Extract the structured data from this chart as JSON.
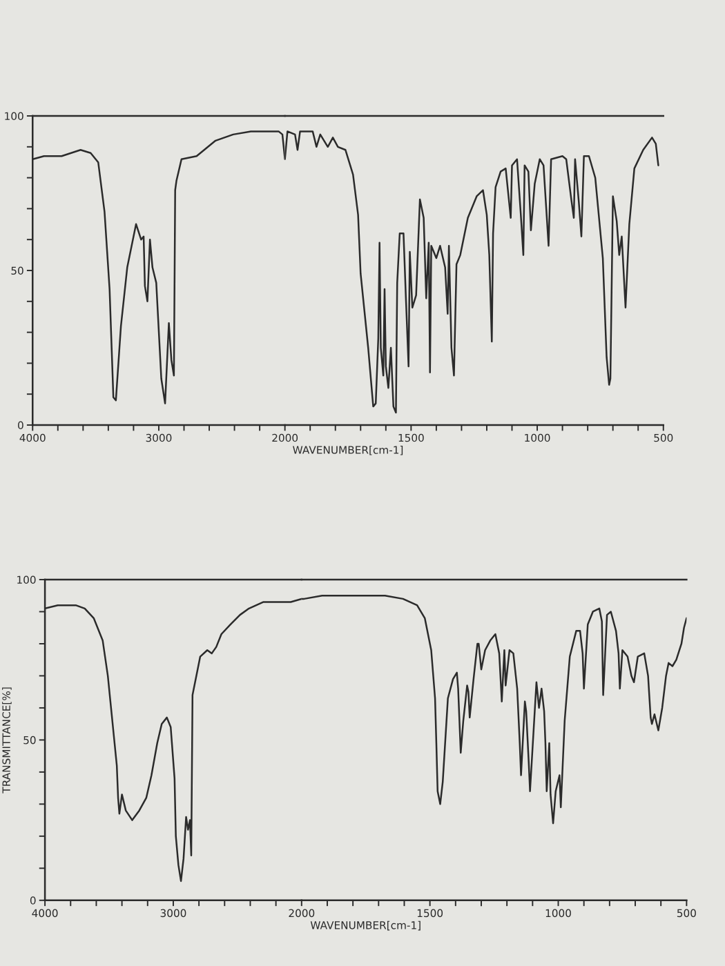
{
  "chart_data": [
    {
      "type": "line",
      "x": [
        4000,
        3910,
        3770,
        3620,
        3540,
        3480,
        3430,
        3390,
        3360,
        3340,
        3300,
        3250,
        3180,
        3140,
        3120,
        3110,
        3090,
        3070,
        3050,
        3020,
        2980,
        2950,
        2920,
        2900,
        2880,
        2870,
        2860,
        2820,
        2700,
        2550,
        2410,
        2270,
        2160,
        2050,
        2020,
        2000
      ],
      "series": [
        {
          "color": "#2b2b2b",
          "values": [
            86,
            87,
            87,
            89,
            88,
            85,
            69,
            44,
            9,
            8,
            32,
            51,
            65,
            60,
            61,
            45,
            40,
            60,
            51,
            46,
            15,
            7,
            33,
            21,
            16,
            76,
            79,
            86,
            87,
            92,
            94,
            95,
            95,
            95,
            94,
            86
          ]
        }
      ],
      "xlim": [
        4000,
        2000
      ],
      "ylim": [
        0,
        100
      ],
      "xticks": [
        4000,
        {
          "value": 3800,
          "label": null
        },
        {
          "value": 3600,
          "label": null
        },
        {
          "value": 3400,
          "label": null
        },
        {
          "value": 3200,
          "label": null
        },
        3000,
        {
          "value": 2800,
          "label": null
        },
        {
          "value": 2600,
          "label": null
        },
        {
          "value": 2400,
          "label": null
        },
        {
          "value": 2200,
          "label": null
        },
        2000
      ],
      "yticks": [
        0,
        {
          "value": 10,
          "label": null
        },
        {
          "value": 20,
          "label": null
        },
        {
          "value": 30,
          "label": null
        },
        {
          "value": 40,
          "label": null
        },
        50,
        {
          "value": 60,
          "label": null
        },
        {
          "value": 70,
          "label": null
        },
        {
          "value": 80,
          "label": null
        },
        {
          "value": 90,
          "label": null
        },
        100
      ]
    },
    {
      "type": "line",
      "xlabel": "WAVENUMBER[cm-1]",
      "tick_labels": "x",
      "x": [
        2000,
        1990,
        1960,
        1950,
        1940,
        1890,
        1875,
        1860,
        1830,
        1810,
        1790,
        1760,
        1730,
        1710,
        1700,
        1670,
        1650,
        1640,
        1630,
        1625,
        1620,
        1610,
        1605,
        1600,
        1590,
        1580,
        1570,
        1560,
        1555,
        1545,
        1530,
        1520,
        1510,
        1505,
        1495,
        1480,
        1465,
        1450,
        1440,
        1430,
        1425,
        1420,
        1400,
        1385,
        1365,
        1355,
        1350,
        1340,
        1330,
        1320,
        1305,
        1275,
        1240,
        1215,
        1200,
        1190,
        1180,
        1175,
        1165,
        1145,
        1125,
        1105,
        1100,
        1080,
        1065,
        1055,
        1050,
        1035,
        1025,
        1010,
        990,
        975,
        955,
        945,
        900,
        885,
        865,
        855,
        850,
        835,
        825,
        815,
        795,
        770,
        740,
        725,
        715,
        710,
        700,
        685,
        675,
        665,
        650,
        635,
        615,
        580,
        545,
        530,
        520
      ],
      "series": [
        {
          "color": "#2b2b2b",
          "values": [
            86,
            95,
            94,
            89,
            95,
            95,
            90,
            94,
            90,
            93,
            90,
            89,
            81,
            68,
            49,
            25,
            6,
            7,
            28,
            59,
            25,
            16,
            44,
            19,
            12,
            25,
            6,
            4,
            46,
            62,
            62,
            40,
            19,
            56,
            38,
            42,
            73,
            67,
            41,
            59,
            17,
            58,
            54,
            58,
            51,
            36,
            58,
            25,
            16,
            52,
            55,
            67,
            74,
            76,
            68,
            55,
            27,
            62,
            77,
            82,
            83,
            67,
            84,
            86,
            68,
            55,
            84,
            82,
            63,
            78,
            86,
            84,
            58,
            86,
            87,
            86,
            73,
            67,
            86,
            72,
            61,
            87,
            87,
            80,
            54,
            22,
            13,
            15,
            74,
            66,
            55,
            61,
            38,
            65,
            83,
            89,
            93,
            91,
            84
          ]
        }
      ],
      "xlim": [
        2000,
        500
      ],
      "ylim": [
        0,
        100
      ],
      "xticks": [
        {
          "value": 1900,
          "label": null
        },
        {
          "value": 1800,
          "label": null
        },
        {
          "value": 1700,
          "label": null
        },
        {
          "value": 1600,
          "label": null
        },
        1500,
        {
          "value": 1400,
          "label": null
        },
        {
          "value": 1300,
          "label": null
        },
        {
          "value": 1200,
          "label": null
        },
        {
          "value": 1100,
          "label": null
        },
        1000,
        {
          "value": 900,
          "label": null
        },
        {
          "value": 800,
          "label": null
        },
        {
          "value": 700,
          "label": null
        },
        {
          "value": 600,
          "label": null
        },
        500
      ]
    },
    {
      "type": "line",
      "ylabel": "TRANSMITTANCE[%]",
      "x": [
        4000,
        3900,
        3760,
        3690,
        3620,
        3550,
        3510,
        3480,
        3460,
        3440,
        3430,
        3420,
        3400,
        3370,
        3320,
        3265,
        3210,
        3170,
        3125,
        3090,
        3050,
        3020,
        2990,
        2980,
        2960,
        2940,
        2920,
        2900,
        2885,
        2870,
        2860,
        2850,
        2790,
        2735,
        2700,
        2665,
        2625,
        2555,
        2480,
        2410,
        2300,
        2190,
        2085,
        2000
      ],
      "series": [
        {
          "color": "#2b2b2b",
          "values": [
            91,
            92,
            92,
            91,
            88,
            81,
            70,
            58,
            50,
            42,
            32,
            27,
            33,
            28,
            25,
            28,
            32,
            39,
            49,
            55,
            57,
            54,
            38,
            20,
            11,
            6,
            13,
            26,
            22,
            25,
            14,
            64,
            76,
            78,
            77,
            79,
            83,
            86,
            89,
            91,
            93,
            93,
            93,
            94
          ]
        }
      ],
      "xlim": [
        4000,
        2000
      ],
      "ylim": [
        0,
        100
      ],
      "xticks": [
        4000,
        {
          "value": 3800,
          "label": null
        },
        {
          "value": 3600,
          "label": null
        },
        {
          "value": 3400,
          "label": null
        },
        {
          "value": 3200,
          "label": null
        },
        3000,
        {
          "value": 2800,
          "label": null
        },
        {
          "value": 2600,
          "label": null
        },
        {
          "value": 2400,
          "label": null
        },
        {
          "value": 2200,
          "label": null
        },
        2000
      ],
      "yticks": [
        0,
        {
          "value": 10,
          "label": null
        },
        {
          "value": 20,
          "label": null
        },
        {
          "value": 30,
          "label": null
        },
        {
          "value": 40,
          "label": null
        },
        50,
        {
          "value": 60,
          "label": null
        },
        {
          "value": 70,
          "label": null
        },
        {
          "value": 80,
          "label": null
        },
        {
          "value": 90,
          "label": null
        },
        100
      ]
    },
    {
      "type": "line",
      "xlabel": "WAVENUMBER[cm-1]",
      "tick_labels": "x",
      "x": [
        2000,
        1990,
        1920,
        1850,
        1745,
        1675,
        1605,
        1550,
        1520,
        1495,
        1480,
        1475,
        1470,
        1460,
        1450,
        1430,
        1410,
        1395,
        1390,
        1380,
        1370,
        1355,
        1350,
        1345,
        1330,
        1315,
        1310,
        1300,
        1285,
        1265,
        1245,
        1230,
        1220,
        1210,
        1205,
        1190,
        1175,
        1160,
        1150,
        1145,
        1130,
        1125,
        1115,
        1110,
        1085,
        1075,
        1065,
        1055,
        1050,
        1045,
        1035,
        1030,
        1020,
        1010,
        995,
        990,
        975,
        955,
        930,
        915,
        905,
        900,
        885,
        865,
        840,
        830,
        825,
        810,
        795,
        775,
        765,
        760,
        750,
        730,
        715,
        705,
        690,
        665,
        650,
        640,
        635,
        625,
        610,
        595,
        580,
        570,
        555,
        540,
        520,
        510,
        500
      ],
      "series": [
        {
          "color": "#2b2b2b",
          "values": [
            94,
            94,
            95,
            95,
            95,
            95,
            94,
            92,
            88,
            78,
            63,
            49,
            34,
            30,
            37,
            63,
            69,
            71,
            66,
            46,
            56,
            67,
            65,
            57,
            69,
            80,
            80,
            72,
            78,
            81,
            83,
            77,
            62,
            78,
            67,
            78,
            77,
            66,
            49,
            39,
            62,
            59,
            43,
            34,
            68,
            60,
            66,
            59,
            49,
            34,
            49,
            33,
            24,
            34,
            39,
            29,
            56,
            76,
            84,
            84,
            77,
            66,
            86,
            90,
            91,
            87,
            64,
            89,
            90,
            84,
            77,
            66,
            78,
            76,
            70,
            68,
            76,
            77,
            70,
            57,
            55,
            58,
            53,
            60,
            70,
            74,
            73,
            75,
            80,
            85,
            88
          ]
        }
      ],
      "xlim": [
        2000,
        500
      ],
      "ylim": [
        0,
        100
      ],
      "xticks": [
        {
          "value": 1900,
          "label": null
        },
        {
          "value": 1800,
          "label": null
        },
        {
          "value": 1700,
          "label": null
        },
        {
          "value": 1600,
          "label": null
        },
        1500,
        {
          "value": 1400,
          "label": null
        },
        {
          "value": 1300,
          "label": null
        },
        {
          "value": 1200,
          "label": null
        },
        {
          "value": 1100,
          "label": null
        },
        1000,
        {
          "value": 900,
          "label": null
        },
        {
          "value": 800,
          "label": null
        },
        {
          "value": 700,
          "label": null
        },
        {
          "value": 600,
          "label": null
        },
        500
      ]
    }
  ]
}
